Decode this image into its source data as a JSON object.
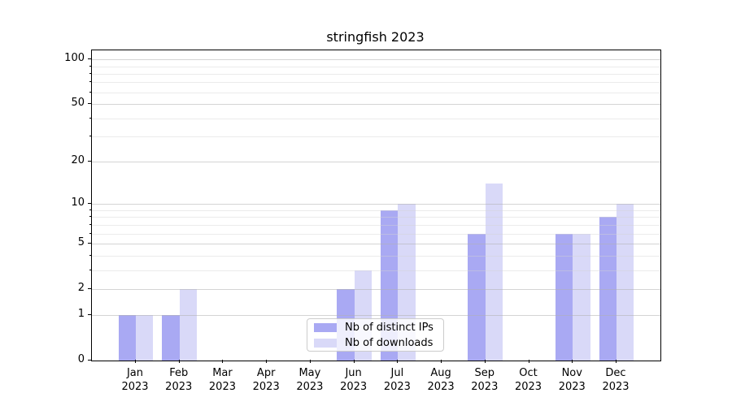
{
  "chart_data": {
    "type": "bar",
    "title": "stringfish 2023",
    "categories": [
      "Jan 2023",
      "Feb 2023",
      "Mar 2023",
      "Apr 2023",
      "May 2023",
      "Jun 2023",
      "Jul 2023",
      "Aug 2023",
      "Sep 2023",
      "Oct 2023",
      "Nov 2023",
      "Dec 2023"
    ],
    "series": [
      {
        "name": "Nb of distinct IPs",
        "color": "#a9a9f3",
        "values": [
          1,
          1,
          0,
          0,
          0,
          2,
          9,
          0,
          6,
          0,
          6,
          8
        ]
      },
      {
        "name": "Nb of downloads",
        "color": "#d9d9f8",
        "values": [
          1,
          2,
          0,
          0,
          0,
          3,
          10,
          0,
          14,
          0,
          6,
          10
        ]
      }
    ],
    "yscale": "log1p",
    "ylim": [
      0,
      115
    ],
    "yticks_major": [
      0,
      1,
      2,
      5,
      10,
      20,
      50,
      100
    ],
    "ytick_labels": [
      "0",
      "1",
      "2",
      "5",
      "10",
      "20",
      "50",
      "100"
    ],
    "yticks_minor": [
      3,
      4,
      6,
      7,
      8,
      9,
      30,
      40,
      60,
      70,
      80,
      90
    ],
    "grid": "horizontal",
    "legend_position": "lower center"
  },
  "legend": {
    "items": [
      {
        "label": "Nb of distinct IPs",
        "color": "#a9a9f3"
      },
      {
        "label": "Nb of downloads",
        "color": "#d9d9f8"
      }
    ]
  },
  "colors": {
    "spine": "#000000",
    "grid_major": "#b0b0b0",
    "grid_minor": "#d2d2d2",
    "text": "#000000",
    "legend_border": "#cccccc"
  }
}
